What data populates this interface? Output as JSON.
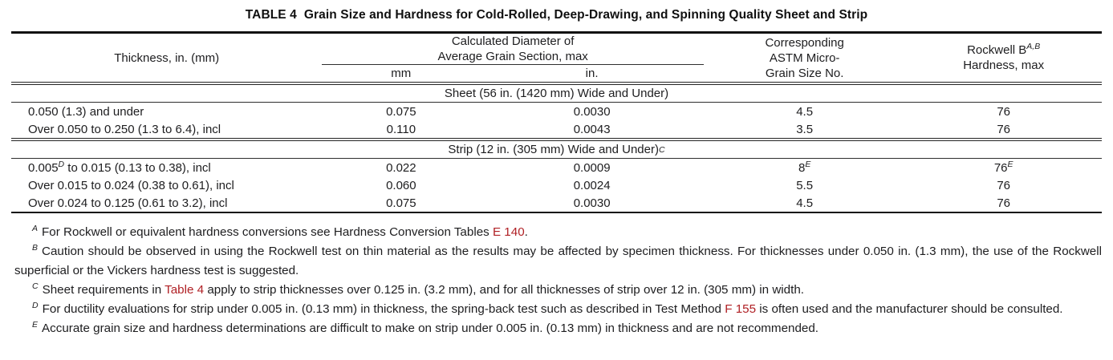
{
  "title": {
    "label": "TABLE 4",
    "text": "Grain Size and Hardness for Cold-Rolled, Deep-Drawing, and Spinning Quality Sheet and Strip"
  },
  "accent_color": "#b02025",
  "table": {
    "header": {
      "thickness": "Thickness, in. (mm)",
      "group_line1": "Calculated Diameter of",
      "group_line2": "Average Grain Section, max",
      "sub_mm": "mm",
      "sub_in": "in.",
      "grain_line1": "Corresponding",
      "grain_line2": "ASTM Micro-",
      "grain_line3": "Grain Size No.",
      "rockwell_line1": "Rockwell B",
      "rockwell_sup": "A,B",
      "rockwell_line2": "Hardness, max"
    },
    "sections": [
      {
        "header": [
          {
            "t": "Sheet (56 in. (1420 mm) Wide and Under)"
          }
        ],
        "rows": [
          {
            "cells": [
              [
                {
                  "t": "0.050 (1.3) and under"
                }
              ],
              [
                {
                  "t": "0.075"
                }
              ],
              [
                {
                  "t": "0.0030"
                }
              ],
              [
                {
                  "t": "4.5"
                }
              ],
              [
                {
                  "t": "76"
                }
              ]
            ]
          },
          {
            "cells": [
              [
                {
                  "t": "Over 0.050 to 0.250 (1.3 to 6.4), incl"
                }
              ],
              [
                {
                  "t": "0.110"
                }
              ],
              [
                {
                  "t": "0.0043"
                }
              ],
              [
                {
                  "t": "3.5"
                }
              ],
              [
                {
                  "t": "76"
                }
              ]
            ]
          }
        ]
      },
      {
        "header": [
          {
            "t": "Strip (12 in. (305 mm) Wide and Under)"
          },
          {
            "sup": "C"
          }
        ],
        "rows": [
          {
            "cells": [
              [
                {
                  "t": "0.005"
                },
                {
                  "sup": "D"
                },
                {
                  "t": " to 0.015 (0.13 to 0.38), incl"
                }
              ],
              [
                {
                  "t": "0.022"
                }
              ],
              [
                {
                  "t": "0.0009"
                }
              ],
              [
                {
                  "t": "8"
                },
                {
                  "sup": "E"
                }
              ],
              [
                {
                  "t": "76"
                },
                {
                  "sup": "E"
                }
              ]
            ]
          },
          {
            "cells": [
              [
                {
                  "t": "Over 0.015 to 0.024 (0.38 to 0.61), incl"
                }
              ],
              [
                {
                  "t": "0.060"
                }
              ],
              [
                {
                  "t": "0.0024"
                }
              ],
              [
                {
                  "t": "5.5"
                }
              ],
              [
                {
                  "t": "76"
                }
              ]
            ]
          },
          {
            "cells": [
              [
                {
                  "t": "Over 0.024 to 0.125 (0.61 to 3.2), incl"
                }
              ],
              [
                {
                  "t": "0.075"
                }
              ],
              [
                {
                  "t": "0.0030"
                }
              ],
              [
                {
                  "t": "4.5"
                }
              ],
              [
                {
                  "t": "76"
                }
              ]
            ]
          }
        ]
      }
    ]
  },
  "footnotes": [
    {
      "letter": "A",
      "segments": [
        {
          "t": "For Rockwell or equivalent hardness conversions see Hardness Conversion Tables "
        },
        {
          "link": "E 140"
        },
        {
          "t": "."
        }
      ]
    },
    {
      "letter": "B",
      "segments": [
        {
          "t": "Caution should be observed in using the Rockwell test on thin material as the results may be affected by specimen thickness. For thicknesses under 0.050 in. (1.3 mm), the use of the Rockwell superficial or the Vickers hardness test is suggested."
        }
      ]
    },
    {
      "letter": "C",
      "segments": [
        {
          "t": "Sheet requirements in "
        },
        {
          "link": "Table 4"
        },
        {
          "t": " apply to strip thicknesses over 0.125 in. (3.2 mm), and for all thicknesses of strip over 12 in. (305 mm) in width."
        }
      ]
    },
    {
      "letter": "D",
      "segments": [
        {
          "t": "For ductility evaluations for strip under 0.005 in. (0.13 mm) in thickness, the spring-back test such as described in Test Method "
        },
        {
          "link": "F 155"
        },
        {
          "t": " is often used and the manufacturer should be consulted."
        }
      ]
    },
    {
      "letter": "E",
      "segments": [
        {
          "t": "Accurate grain size and hardness determinations are difficult to make on strip under 0.005 in. (0.13 mm) in thickness and are not recommended."
        }
      ]
    }
  ]
}
